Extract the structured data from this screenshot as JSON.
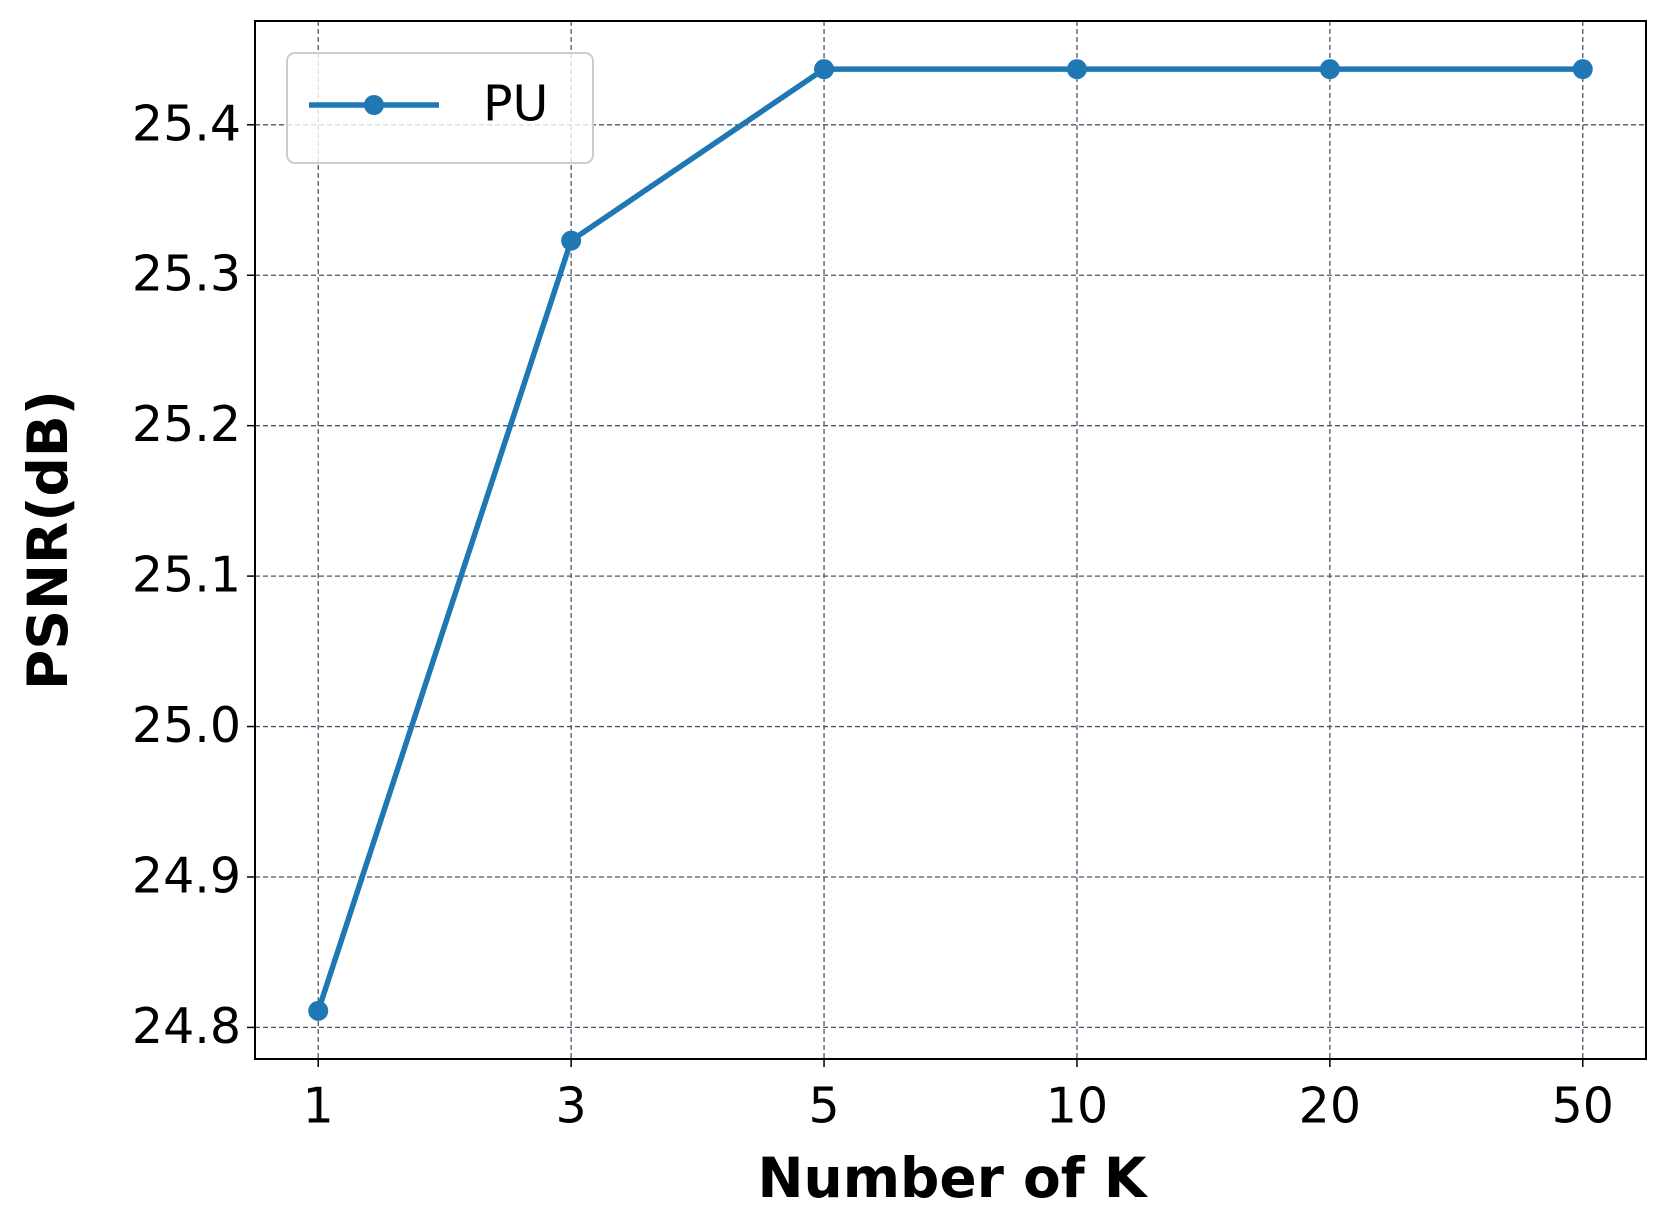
{
  "chart_data": {
    "type": "line",
    "x_label": "Number of K",
    "y_label": "PSNR(dB)",
    "categories": [
      "1",
      "3",
      "5",
      "10",
      "20",
      "50"
    ],
    "series": [
      {
        "name": "PU",
        "color": "#1f77b4",
        "values": [
          24.811,
          25.323,
          25.437,
          25.437,
          25.437,
          25.437
        ]
      }
    ],
    "ylim": [
      24.779,
      25.469
    ],
    "yticks": [
      24.8,
      24.9,
      {
        "value": 25,
        "label": "25.0"
      },
      25.1,
      25.2,
      25.3,
      25.4
    ],
    "grid": true,
    "legend": "upper-left"
  }
}
